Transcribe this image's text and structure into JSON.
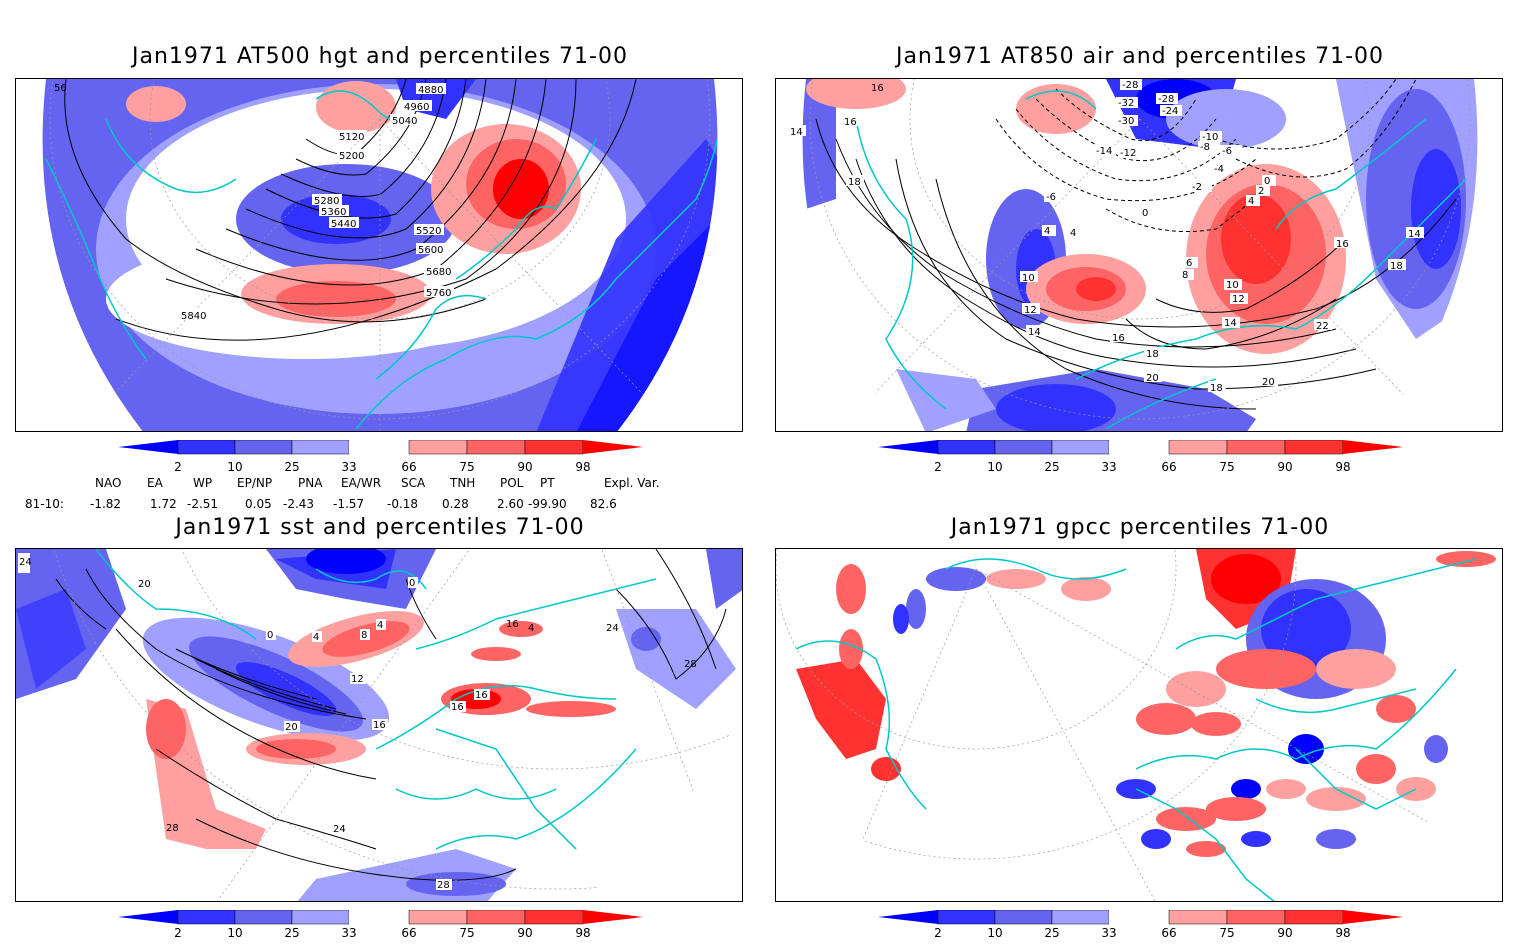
{
  "panels": [
    {
      "id": "p1",
      "title": "Jan1971 AT500 hgt and percentiles 71-00",
      "contour_labels": [
        "5840",
        "5760",
        "5680",
        "5600",
        "5520",
        "5440",
        "5360",
        "5280",
        "5200",
        "5120",
        "5040",
        "4960",
        "4880",
        "56"
      ]
    },
    {
      "id": "p2",
      "title": "Jan1971 AT850 air and percentiles 71-00",
      "contour_labels": [
        "16",
        "14",
        "18",
        "16",
        "10",
        "12",
        "14",
        "16",
        "18",
        "20",
        "18",
        "20",
        "22",
        "14",
        "16",
        "18",
        "-28",
        "-32",
        "-28",
        "-24",
        "-30",
        "-12",
        "-14",
        "-10",
        "-8",
        "-6",
        "-4",
        "-2",
        "0",
        "2",
        "4",
        "4",
        "6",
        "8",
        "10",
        "12",
        "14",
        "-6",
        "4",
        "0"
      ]
    },
    {
      "id": "p3",
      "title": "Jan1971 sst and percentiles 71-00",
      "contour_labels": [
        "24",
        "20",
        "0",
        "4",
        "8",
        "4",
        "0",
        "12",
        "16",
        "16",
        "16",
        "20",
        "24",
        "28",
        "28",
        "24",
        "28",
        "16",
        "4"
      ]
    },
    {
      "id": "p4",
      "title": "Jan1971 gpcc percentiles 71-00",
      "contour_labels": []
    }
  ],
  "colorbar": {
    "ticks": [
      "2",
      "10",
      "25",
      "33",
      "66",
      "75",
      "90",
      "98"
    ],
    "colors": {
      "below2": "#0000ff",
      "b2_10": "#3232ff",
      "b10_25": "#6464f0",
      "b25_33": "#a0a0ff",
      "neutral": "#ffffff",
      "a66_75": "#ffa0a0",
      "a75_90": "#ff6464",
      "a90_98": "#ff3232",
      "above98": "#ff0000"
    }
  },
  "teleconnections": {
    "row_label": "81-10:",
    "headers": [
      "NAO",
      "EA",
      "WP",
      "EP/NP",
      "PNA",
      "EA/WR",
      "SCA",
      "TNH",
      "POL",
      "PT",
      "Expl. Var."
    ],
    "values": [
      "-1.82",
      "1.72",
      "-2.51",
      "0.05",
      "-2.43",
      "-1.57",
      "-0.18",
      "0.28",
      "2.60",
      "-99.90",
      "82.6"
    ]
  },
  "map_colors": {
    "coast": "#00c8c8",
    "contour": "#000000",
    "grid": "#999999"
  }
}
